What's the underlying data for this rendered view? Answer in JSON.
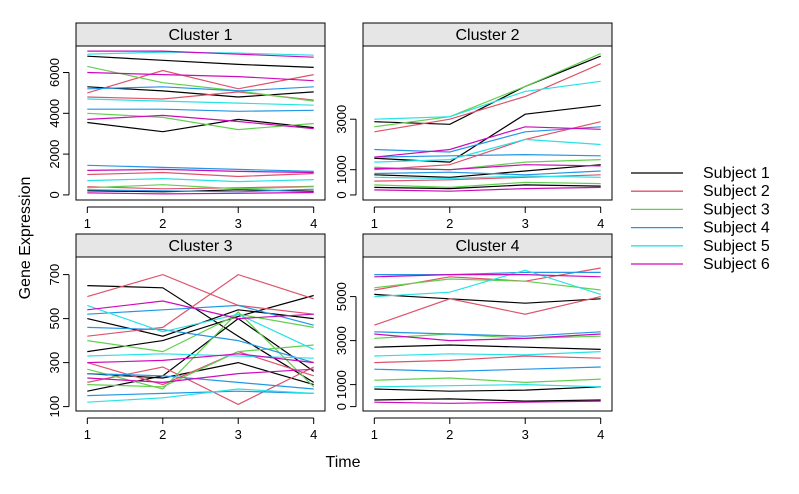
{
  "chart_data": {
    "type": "line",
    "xlabel": "Time",
    "ylabel": "Gene Expression",
    "x": [
      1,
      2,
      3,
      4
    ],
    "legend": {
      "placement": "right",
      "entries": [
        {
          "name": "Subject 1",
          "color": "#000000"
        },
        {
          "name": "Subject 2",
          "color": "#DF536B"
        },
        {
          "name": "Subject 3",
          "color": "#61D04F"
        },
        {
          "name": "Subject 4",
          "color": "#2297E6"
        },
        {
          "name": "Subject 5",
          "color": "#28E2E5"
        },
        {
          "name": "Subject 6",
          "color": "#CD0BBC"
        }
      ]
    },
    "panels": [
      {
        "title": "Cluster 1",
        "ylim": [
          -250,
          7300
        ],
        "yticks": [
          0,
          2000,
          4000,
          6000
        ],
        "yticklabels": [
          "0",
          "2000",
          "4000",
          "6000"
        ],
        "series": [
          {
            "subject": 1,
            "values": [
              3550,
              3100,
              3700,
              3300
            ]
          },
          {
            "subject": 1,
            "values": [
              5300,
              5100,
              4800,
              5050
            ]
          },
          {
            "subject": 1,
            "values": [
              6800,
              6600,
              6400,
              6250
            ]
          },
          {
            "subject": 1,
            "values": [
              200,
              150,
              250,
              180
            ]
          },
          {
            "subject": 2,
            "values": [
              5000,
              6100,
              5200,
              5900
            ]
          },
          {
            "subject": 2,
            "values": [
              4800,
              4700,
              5050,
              4650
            ]
          },
          {
            "subject": 2,
            "values": [
              1000,
              1100,
              900,
              1050
            ]
          },
          {
            "subject": 2,
            "values": [
              400,
              300,
              350,
              420
            ]
          },
          {
            "subject": 3,
            "values": [
              6300,
              5500,
              5100,
              4600
            ]
          },
          {
            "subject": 3,
            "values": [
              4000,
              3800,
              3200,
              3500
            ]
          },
          {
            "subject": 3,
            "values": [
              350,
              500,
              300,
              400
            ]
          },
          {
            "subject": 4,
            "values": [
              5200,
              5300,
              5100,
              5300
            ]
          },
          {
            "subject": 4,
            "values": [
              1450,
              1350,
              1250,
              1150
            ]
          },
          {
            "subject": 4,
            "values": [
              4200,
              4200,
              4100,
              4150
            ]
          },
          {
            "subject": 4,
            "values": [
              250,
              200,
              150,
              280
            ]
          },
          {
            "subject": 5,
            "values": [
              6900,
              7000,
              6950,
              6850
            ]
          },
          {
            "subject": 5,
            "values": [
              4700,
              4600,
              4500,
              4400
            ]
          },
          {
            "subject": 5,
            "values": [
              700,
              800,
              650,
              750
            ]
          },
          {
            "subject": 6,
            "values": [
              7050,
              7050,
              6900,
              6750
            ]
          },
          {
            "subject": 6,
            "values": [
              6000,
              5900,
              5800,
              5600
            ]
          },
          {
            "subject": 6,
            "values": [
              3700,
              3900,
              3600,
              3250
            ]
          },
          {
            "subject": 6,
            "values": [
              1200,
              1250,
              1150,
              1100
            ]
          },
          {
            "subject": 6,
            "values": [
              100,
              50,
              80,
              120
            ]
          }
        ]
      },
      {
        "title": "Cluster 2",
        "ylim": [
          -200,
          5900
        ],
        "yticks": [
          0,
          1000,
          3000
        ],
        "yticklabels": [
          "0",
          "1000",
          "3000"
        ],
        "series": [
          {
            "subject": 1,
            "values": [
              2900,
              2800,
              4300,
              5500
            ]
          },
          {
            "subject": 1,
            "values": [
              1450,
              1300,
              3200,
              3550
            ]
          },
          {
            "subject": 1,
            "values": [
              800,
              700,
              950,
              1200
            ]
          },
          {
            "subject": 1,
            "values": [
              300,
              250,
              400,
              350
            ]
          },
          {
            "subject": 2,
            "values": [
              2500,
              3000,
              3900,
              5200
            ]
          },
          {
            "subject": 2,
            "values": [
              1000,
              1200,
              2200,
              2900
            ]
          },
          {
            "subject": 2,
            "values": [
              550,
              600,
              700,
              800
            ]
          },
          {
            "subject": 3,
            "values": [
              2700,
              3100,
              4300,
              5600
            ]
          },
          {
            "subject": 3,
            "values": [
              1100,
              1000,
              1300,
              1400
            ]
          },
          {
            "subject": 3,
            "values": [
              400,
              300,
              500,
              450
            ]
          },
          {
            "subject": 4,
            "values": [
              1800,
              1700,
              2500,
              2700
            ]
          },
          {
            "subject": 4,
            "values": [
              1500,
              1550,
              1600,
              1550
            ]
          },
          {
            "subject": 4,
            "values": [
              850,
              900,
              800,
              950
            ]
          },
          {
            "subject": 5,
            "values": [
              3000,
              3100,
              4100,
              4500
            ]
          },
          {
            "subject": 5,
            "values": [
              1300,
              1400,
              2200,
              2000
            ]
          },
          {
            "subject": 5,
            "values": [
              700,
              650,
              750,
              700
            ]
          },
          {
            "subject": 6,
            "values": [
              1500,
              1800,
              2700,
              2600
            ]
          },
          {
            "subject": 6,
            "values": [
              1050,
              1000,
              1200,
              1150
            ]
          },
          {
            "subject": 6,
            "values": [
              200,
              150,
              250,
              300
            ]
          }
        ]
      },
      {
        "title": "Cluster 3",
        "ylim": [
          80,
          780
        ],
        "yticks": [
          100,
          300,
          500,
          700
        ],
        "yticklabels": [
          "100",
          "300",
          "500",
          "700"
        ],
        "series": [
          {
            "subject": 1,
            "values": [
              650,
              640,
              420,
              210
            ]
          },
          {
            "subject": 1,
            "values": [
              350,
              400,
              510,
              605
            ]
          },
          {
            "subject": 1,
            "values": [
              250,
              230,
              300,
              200
            ]
          },
          {
            "subject": 1,
            "values": [
              500,
              420,
              540,
              500
            ]
          },
          {
            "subject": 1,
            "values": [
              170,
              240,
              500,
              260
            ]
          },
          {
            "subject": 2,
            "values": [
              600,
              700,
              560,
              520
            ]
          },
          {
            "subject": 2,
            "values": [
              420,
              460,
              700,
              590
            ]
          },
          {
            "subject": 2,
            "values": [
              300,
              200,
              350,
              240
            ]
          },
          {
            "subject": 2,
            "values": [
              210,
              280,
              110,
              280
            ]
          },
          {
            "subject": 3,
            "values": [
              400,
              350,
              520,
              460
            ]
          },
          {
            "subject": 3,
            "values": [
              270,
              180,
              530,
              190
            ]
          },
          {
            "subject": 3,
            "values": [
              200,
              190,
              350,
              380
            ]
          },
          {
            "subject": 4,
            "values": [
              460,
              450,
              400,
              300
            ]
          },
          {
            "subject": 4,
            "values": [
              250,
              240,
              210,
              180
            ]
          },
          {
            "subject": 4,
            "values": [
              520,
              540,
              560,
              470
            ]
          },
          {
            "subject": 4,
            "values": [
              150,
              160,
              170,
              160
            ]
          },
          {
            "subject": 5,
            "values": [
              560,
              440,
              520,
              360
            ]
          },
          {
            "subject": 5,
            "values": [
              120,
              140,
              180,
              160
            ]
          },
          {
            "subject": 5,
            "values": [
              330,
              340,
              330,
              320
            ]
          },
          {
            "subject": 6,
            "values": [
              540,
              580,
              500,
              520
            ]
          },
          {
            "subject": 6,
            "values": [
              300,
              310,
              340,
              300
            ]
          },
          {
            "subject": 6,
            "values": [
              230,
              210,
              250,
              270
            ]
          }
        ]
      },
      {
        "title": "Cluster 4",
        "ylim": [
          -200,
          6800
        ],
        "yticks": [
          0,
          1000,
          3000,
          5000
        ],
        "yticklabels": [
          "0",
          "1000",
          "3000",
          "5000"
        ],
        "series": [
          {
            "subject": 1,
            "values": [
              5100,
              4900,
              4700,
              4900
            ]
          },
          {
            "subject": 1,
            "values": [
              2700,
              2800,
              2700,
              2600
            ]
          },
          {
            "subject": 1,
            "values": [
              800,
              700,
              750,
              900
            ]
          },
          {
            "subject": 1,
            "values": [
              300,
              350,
              250,
              300
            ]
          },
          {
            "subject": 2,
            "values": [
              3700,
              4900,
              4200,
              5000
            ]
          },
          {
            "subject": 2,
            "values": [
              5300,
              5900,
              5700,
              6300
            ]
          },
          {
            "subject": 2,
            "values": [
              2000,
              2100,
              2300,
              2200
            ]
          },
          {
            "subject": 3,
            "values": [
              5400,
              5800,
              5700,
              5300
            ]
          },
          {
            "subject": 3,
            "values": [
              3100,
              3300,
              3100,
              3200
            ]
          },
          {
            "subject": 3,
            "values": [
              1200,
              1300,
              1100,
              1250
            ]
          },
          {
            "subject": 4,
            "values": [
              6000,
              6000,
              6100,
              6100
            ]
          },
          {
            "subject": 4,
            "values": [
              3400,
              3300,
              3200,
              3400
            ]
          },
          {
            "subject": 4,
            "values": [
              1700,
              1600,
              1700,
              1800
            ]
          },
          {
            "subject": 5,
            "values": [
              5000,
              5200,
              6200,
              5100
            ]
          },
          {
            "subject": 5,
            "values": [
              2300,
              2400,
              2350,
              2500
            ]
          },
          {
            "subject": 5,
            "values": [
              900,
              950,
              1000,
              900
            ]
          },
          {
            "subject": 6,
            "values": [
              5900,
              6000,
              6000,
              5900
            ]
          },
          {
            "subject": 6,
            "values": [
              3300,
              3000,
              3100,
              3300
            ]
          },
          {
            "subject": 6,
            "values": [
              200,
              150,
              200,
              250
            ]
          }
        ]
      }
    ]
  }
}
